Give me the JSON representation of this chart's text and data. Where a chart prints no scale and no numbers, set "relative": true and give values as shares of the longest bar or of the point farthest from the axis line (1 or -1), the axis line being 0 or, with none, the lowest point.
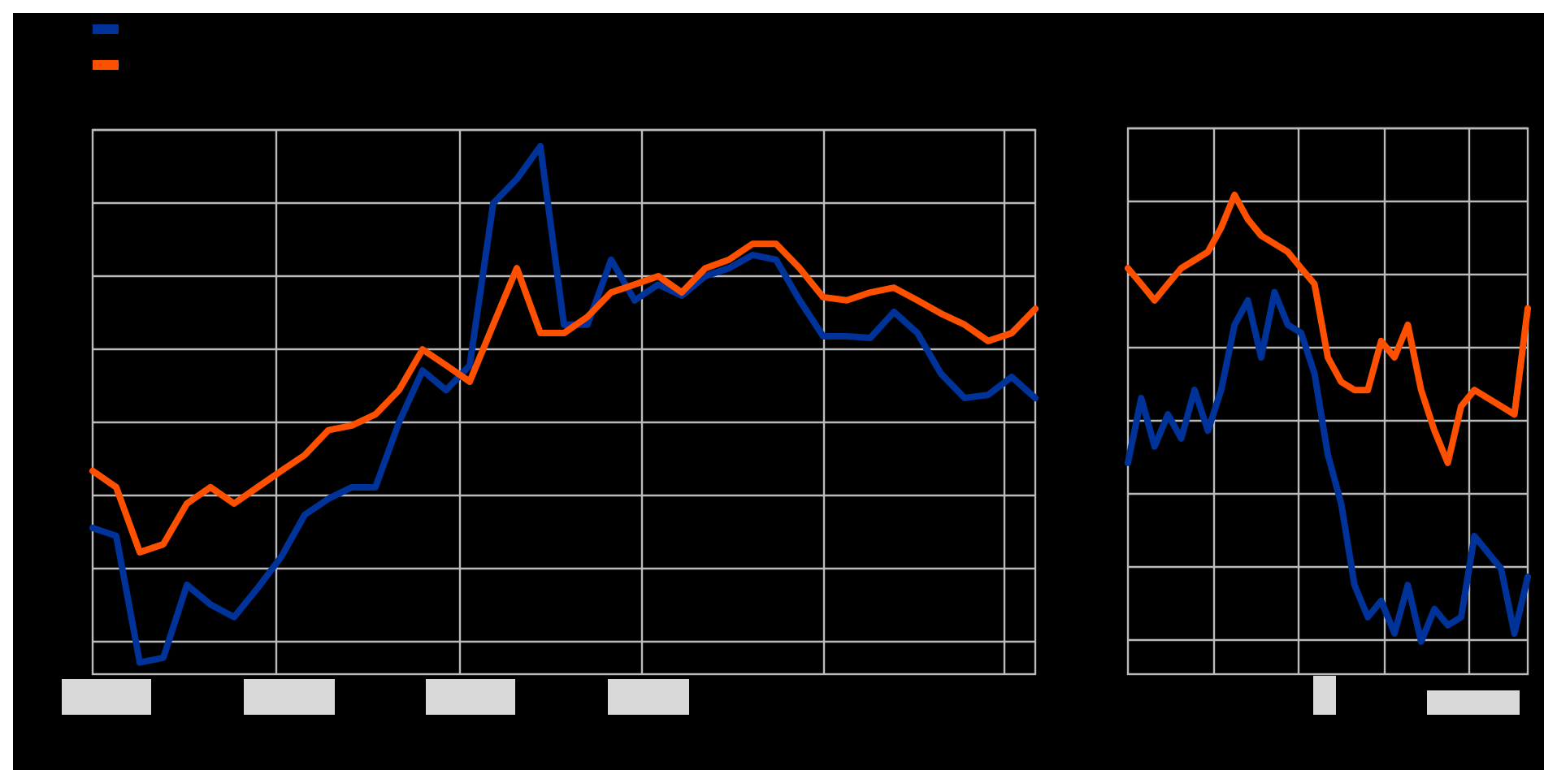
{
  "chart_data": [
    {
      "type": "line",
      "relative": true,
      "grid": true,
      "categories": [
        null,
        null,
        null,
        null,
        null,
        null,
        null,
        null,
        null,
        null,
        null,
        null,
        null,
        null,
        null,
        null,
        null,
        null,
        null,
        null,
        null,
        null,
        null,
        null,
        null,
        null,
        null,
        null,
        null,
        null,
        null,
        null,
        null,
        null,
        null,
        null,
        null,
        null,
        null,
        null,
        null
      ],
      "series": [
        {
          "color": "#003399",
          "values": [
            0.277,
            0.262,
            0.022,
            0.031,
            0.169,
            0.132,
            0.108,
            0.163,
            0.222,
            0.302,
            0.332,
            0.354,
            0.354,
            0.477,
            0.575,
            0.538,
            0.585,
            0.892,
            0.938,
            1.0,
            0.662,
            0.662,
            0.785,
            0.708,
            0.738,
            0.717,
            0.754,
            0.769,
            0.794,
            0.785,
            0.708,
            0.64,
            0.64,
            0.637,
            0.686,
            0.646,
            0.569,
            0.523,
            0.529,
            0.563,
            0.523
          ]
        },
        {
          "color": "#ff5000",
          "values": [
            0.385,
            0.354,
            0.231,
            0.246,
            0.323,
            0.354,
            0.323,
            0.354,
            0.385,
            0.415,
            0.462,
            0.471,
            0.492,
            0.538,
            0.615,
            0.585,
            0.554,
            0.662,
            0.769,
            0.646,
            0.646,
            0.677,
            0.723,
            0.738,
            0.754,
            0.723,
            0.769,
            0.785,
            0.815,
            0.815,
            0.769,
            0.714,
            0.708,
            0.723,
            0.732,
            0.708,
            0.683,
            0.662,
            0.631,
            0.646,
            0.692
          ]
        }
      ]
    },
    {
      "type": "line",
      "relative": true,
      "grid": true,
      "categories": [
        null,
        null,
        null,
        null,
        null,
        null,
        null,
        null,
        null,
        null,
        null,
        null,
        null,
        null,
        null,
        null,
        null,
        null,
        null,
        null,
        null,
        null,
        null,
        null,
        null,
        null,
        null,
        null,
        null,
        null,
        null
      ],
      "series": [
        {
          "color": "#003399",
          "values": [
            0.441,
            0.576,
            0.475,
            0.542,
            0.492,
            0.593,
            0.508,
            0.593,
            0.729,
            0.78,
            0.661,
            0.797,
            0.729,
            0.712,
            0.627,
            0.458,
            0.356,
            0.186,
            0.119,
            0.153,
            0.085,
            0.186,
            0.068,
            0.136,
            0.102,
            0.119,
            0.288,
            0.254,
            0.22,
            0.085,
            0.203
          ]
        },
        {
          "color": "#ff5000",
          "values": [
            0.847,
            0.814,
            0.78,
            0.814,
            0.847,
            0.864,
            0.881,
            0.932,
            1.0,
            0.949,
            0.915,
            0.898,
            0.881,
            0.847,
            0.814,
            0.661,
            0.61,
            0.593,
            0.593,
            0.695,
            0.661,
            0.729,
            0.593,
            0.508,
            0.441,
            0.559,
            0.593,
            0.576,
            0.559,
            0.542,
            0.763
          ]
        }
      ]
    }
  ]
}
